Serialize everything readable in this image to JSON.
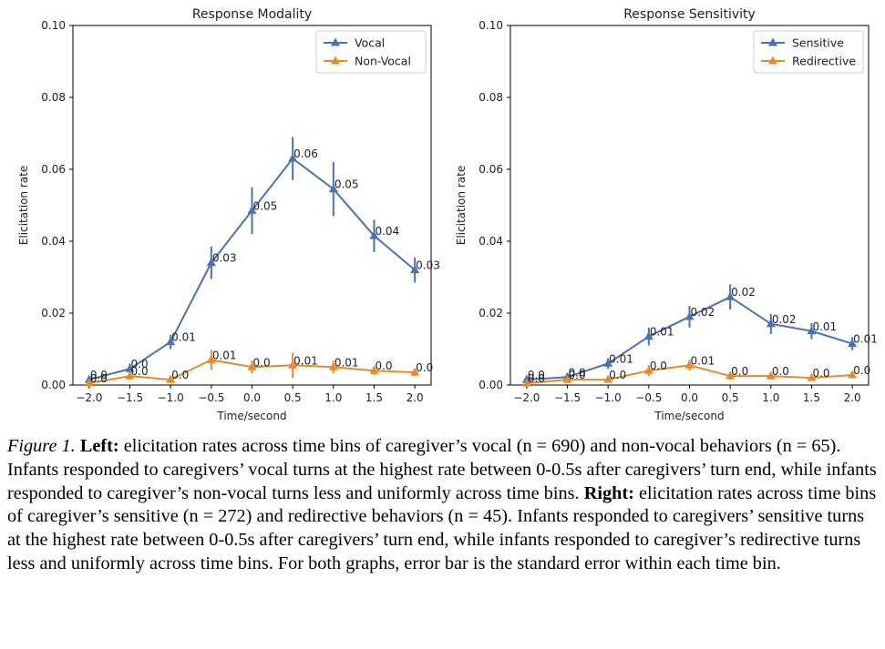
{
  "chart_data": [
    {
      "type": "line",
      "title": "Response Modality",
      "xlabel": "Time/second",
      "ylabel": "Elicitation rate",
      "xlim": [
        -2.2,
        2.2
      ],
      "ylim": [
        0,
        0.1
      ],
      "xticks": [
        -2.0,
        -1.5,
        -1.0,
        -0.5,
        0.0,
        0.5,
        1.0,
        1.5,
        2.0
      ],
      "xtick_labels": [
        "−2.0",
        "−1.5",
        "−1.0",
        "−0.5",
        "0.0",
        "0.5",
        "1.0",
        "1.5",
        "2.0"
      ],
      "yticks": [
        0,
        0.02,
        0.04,
        0.06,
        0.08,
        0.1
      ],
      "ytick_labels": [
        "0.00",
        "0.02",
        "0.04",
        "0.06",
        "0.08",
        "0.10"
      ],
      "legend_position": "top-right",
      "grid": false,
      "x": [
        -2.0,
        -1.5,
        -1.0,
        -0.5,
        0.0,
        0.5,
        1.0,
        1.5,
        2.0
      ],
      "series": [
        {
          "name": "Vocal",
          "color": "#4c72b0",
          "values": [
            0.0015,
            0.0045,
            0.012,
            0.034,
            0.0485,
            0.063,
            0.0545,
            0.0415,
            0.032
          ],
          "errors": [
            0.001,
            0.0015,
            0.002,
            0.0045,
            0.0065,
            0.006,
            0.0075,
            0.0045,
            0.0035
          ],
          "labels": [
            "0.0",
            "0.0",
            "0.01",
            "0.03",
            "0.05",
            "0.06",
            "0.05",
            "0.04",
            "0.03"
          ]
        },
        {
          "name": "Non-Vocal",
          "color": "#e68a2e",
          "values": [
            0.0005,
            0.0025,
            0.0015,
            0.007,
            0.005,
            0.0055,
            0.005,
            0.004,
            0.0035
          ],
          "errors": [
            0.0008,
            0.001,
            0.001,
            0.0028,
            0.0018,
            0.0035,
            0.0018,
            0.0012,
            0.001
          ],
          "labels": [
            "0.0",
            "0.0",
            "0.0",
            "0.01",
            "0.0",
            "0.01",
            "0.01",
            "0.0",
            "0.0"
          ]
        }
      ]
    },
    {
      "type": "line",
      "title": "Response Sensitivity",
      "xlabel": "Time/second",
      "ylabel": "Elicitation rate",
      "xlim": [
        -2.2,
        2.2
      ],
      "ylim": [
        0,
        0.1
      ],
      "xticks": [
        -2.0,
        -1.5,
        -1.0,
        -0.5,
        0.0,
        0.5,
        1.0,
        1.5,
        2.0
      ],
      "xtick_labels": [
        "−2.0",
        "−1.5",
        "−1.0",
        "−0.5",
        "0.0",
        "0.5",
        "1.0",
        "1.5",
        "2.0"
      ],
      "yticks": [
        0,
        0.02,
        0.04,
        0.06,
        0.08,
        0.1
      ],
      "ytick_labels": [
        "0.00",
        "0.02",
        "0.04",
        "0.06",
        "0.08",
        "0.10"
      ],
      "legend_position": "top-right",
      "grid": false,
      "x": [
        -2.0,
        -1.5,
        -1.0,
        -0.5,
        0.0,
        0.5,
        1.0,
        1.5,
        2.0
      ],
      "series": [
        {
          "name": "Sensitive",
          "color": "#4c72b0",
          "values": [
            0.0015,
            0.0022,
            0.006,
            0.0135,
            0.019,
            0.0245,
            0.017,
            0.015,
            0.0115
          ],
          "errors": [
            0.0008,
            0.001,
            0.0015,
            0.0025,
            0.003,
            0.0035,
            0.0028,
            0.0022,
            0.0018
          ],
          "labels": [
            "0.0",
            "0.0",
            "0.01",
            "0.01",
            "0.02",
            "0.02",
            "0.02",
            "0.01",
            "0.01"
          ]
        },
        {
          "name": "Redirective",
          "color": "#e68a2e",
          "values": [
            0.0005,
            0.0015,
            0.0015,
            0.004,
            0.0055,
            0.0025,
            0.0025,
            0.002,
            0.0028
          ],
          "errors": [
            0.0006,
            0.0008,
            0.0008,
            0.0015,
            0.0015,
            0.001,
            0.001,
            0.0008,
            0.0008
          ],
          "labels": [
            "0.0",
            "0.0",
            "0.0",
            "0.0",
            "0.01",
            "0.0",
            "0.0",
            "0.0",
            "0.0"
          ]
        }
      ]
    }
  ],
  "caption": {
    "label": "Figure 1.",
    "left_head": "Left:",
    "left_text": "elicitation rates across time bins of caregiver’s vocal (n = 690) and non-vocal behaviors (n = 65). Infants responded to caregivers’ vocal turns at the highest rate between 0-0.5s after caregivers’ turn end, while infants responded to caregiver’s non-vocal turns less and uniformly across time bins.",
    "right_head": "Right:",
    "right_text": "elicitation rates across time bins of caregiver’s sensitive (n = 272) and redirective behaviors (n = 45). Infants responded to caregivers’ sensitive turns at the highest rate between 0-0.5s after caregivers’ turn end, while infants responded to caregiver’s redirective turns less and uniformly across time bins. For both graphs, error bar is the standard error within each time bin."
  }
}
